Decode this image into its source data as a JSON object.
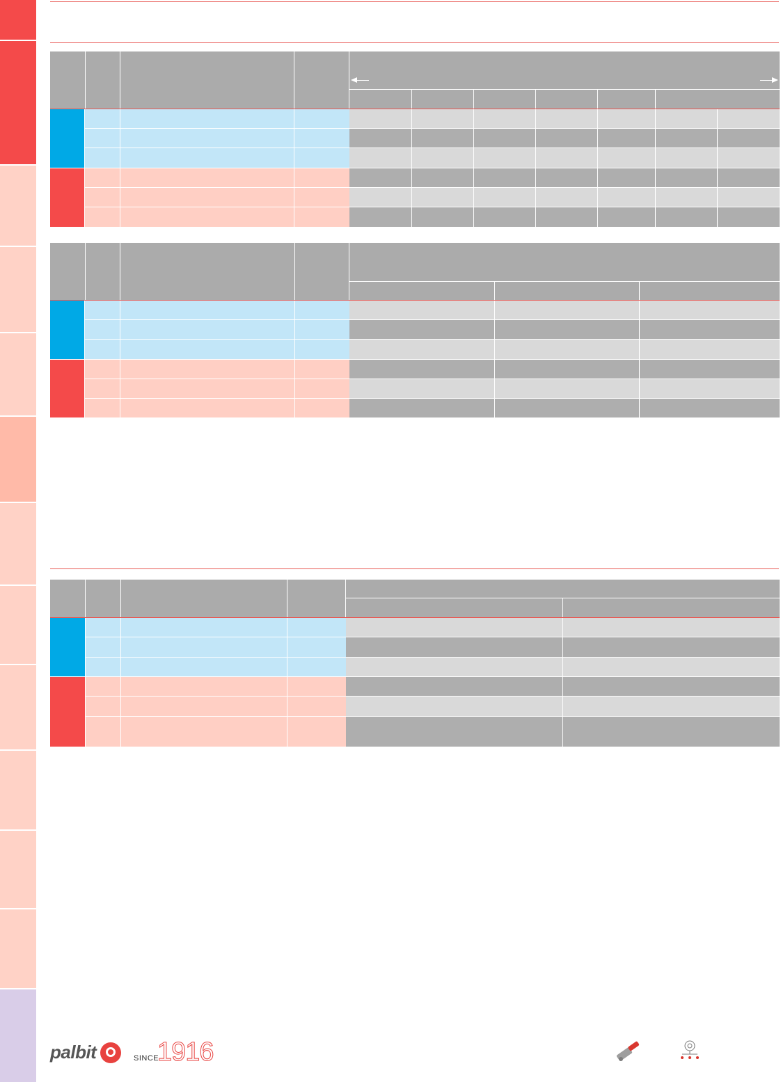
{
  "colors": {
    "accent_red": "#f44a4a",
    "accent_blue": "#00a9e6",
    "tab_pink": "#ffd2c6",
    "tab_salmon": "#ffbaa8",
    "tab_lavender": "#d9cde8",
    "header_gray": "#ababab",
    "row_blue": "#c2e6f8",
    "row_pink": "#ffcfc4"
  },
  "footer": {
    "brand": "palbit",
    "since_label": "SINCE",
    "year": "1916"
  },
  "icons": [
    "palbit-logo-icon",
    "turning-tool-icon",
    "insert-grade-icon"
  ]
}
